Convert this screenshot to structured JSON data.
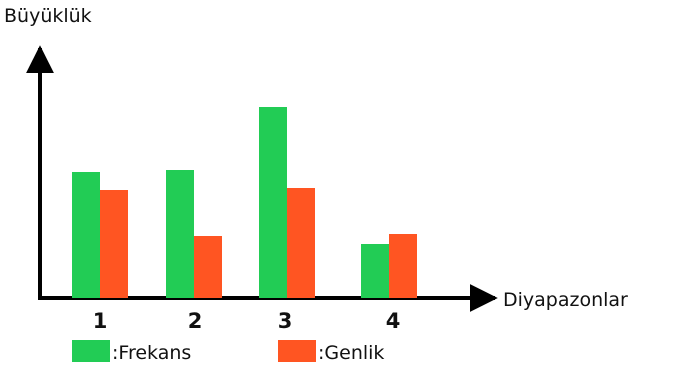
{
  "chart_data": {
    "type": "bar",
    "title": "",
    "ylabel": "Büyüklük",
    "xlabel": "Diyapazonlar",
    "categories": [
      "1",
      "2",
      "3",
      "4"
    ],
    "series": [
      {
        "name": "Frekans",
        "color": "#22cc55",
        "values": [
          126,
          128,
          191,
          54
        ]
      },
      {
        "name": "Genlik",
        "color": "#ff5522",
        "values": [
          108,
          62,
          110,
          64
        ]
      }
    ],
    "ylim": [
      0,
      240
    ],
    "grid": false,
    "legend_position": "bottom-left",
    "legend": [
      {
        "label": ":Frekans",
        "color": "#22cc55"
      },
      {
        "label": ":Genlik",
        "color": "#ff5522"
      }
    ]
  }
}
